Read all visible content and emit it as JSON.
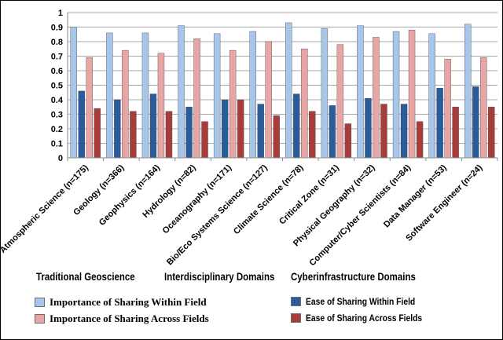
{
  "chart_data": {
    "type": "bar",
    "title": "",
    "xlabel": "",
    "ylabel": "",
    "ylim": [
      0,
      1
    ],
    "yticks": [
      "0",
      "0.1",
      "0.2",
      "0.3",
      "0.4",
      "0.5",
      "0.6",
      "0.7",
      "0.8",
      "0.9",
      "1"
    ],
    "grid": true,
    "legend_position": "bottom",
    "categories": [
      "Atmospheric Science (n=175)",
      "Geology (n=366)",
      "Geophysics (n=164)",
      "Hydrology (n=82)",
      "Oceanography (n=171)",
      "Bio/Eco Systems Science (n=127)",
      "Climate Science (n=78)",
      "Critical Zone (n=31)",
      "Physical Geography (n=32)",
      "Computer/Cyber Scientists (n=84)",
      "Data Manager (n=53)",
      "Software Engineer (n=24)"
    ],
    "series": [
      {
        "name": "Importance of Sharing Within Field",
        "color": "#a8c5ea",
        "values": [
          0.9,
          0.86,
          0.86,
          0.91,
          0.855,
          0.87,
          0.93,
          0.89,
          0.91,
          0.87,
          0.855,
          0.92
        ]
      },
      {
        "name": "Ease of Sharing Within Field",
        "color": "#2a5b9a",
        "values": [
          0.46,
          0.4,
          0.44,
          0.35,
          0.4,
          0.37,
          0.44,
          0.36,
          0.41,
          0.37,
          0.48,
          0.49
        ]
      },
      {
        "name": "Importance of Sharing Across Fields",
        "color": "#e8a5a5",
        "values": [
          0.69,
          0.74,
          0.72,
          0.82,
          0.74,
          0.8,
          0.75,
          0.78,
          0.83,
          0.88,
          0.68,
          0.69
        ]
      },
      {
        "name": "Ease of Sharing Across Fields",
        "color": "#a83c3a",
        "values": [
          0.34,
          0.32,
          0.32,
          0.25,
          0.4,
          0.29,
          0.32,
          0.235,
          0.37,
          0.25,
          0.35,
          0.35
        ]
      }
    ],
    "groups": [
      "Traditional Geoscience",
      "Interdisciplinary Domains",
      "Cyberinfrastructure Domains"
    ]
  }
}
